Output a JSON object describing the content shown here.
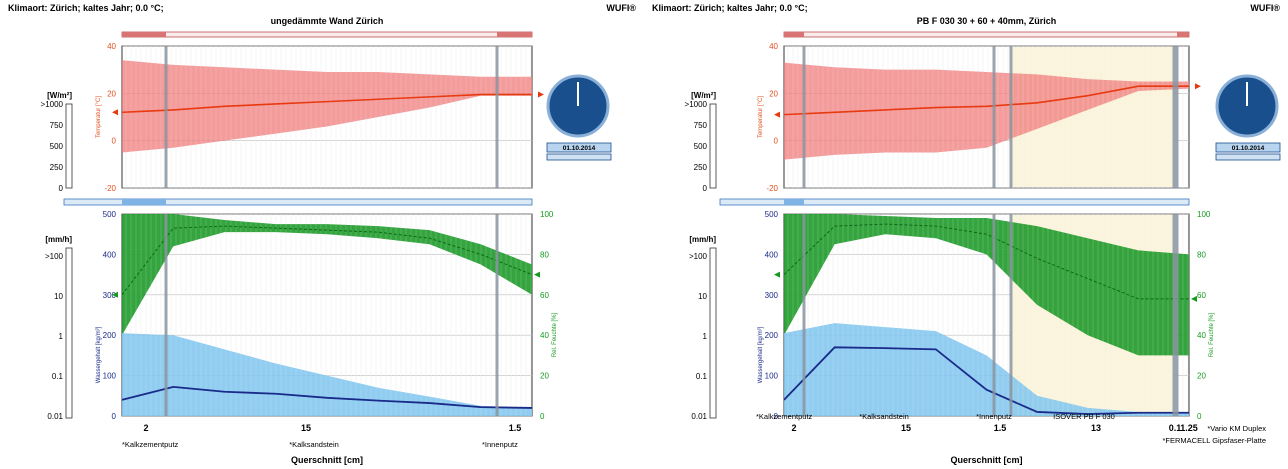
{
  "chart_data": [
    {
      "type": "area",
      "header_left": "Klimaort: Zürich; kaltes Jahr; 0.0 °C;",
      "header_right": "WUFI®",
      "title": "ungedämmte Wand Zürich",
      "xlabel": "Querschnitt [cm]",
      "layers": [
        {
          "name": "*Kalkzementputz",
          "thickness_label": "2",
          "thickness": 2
        },
        {
          "name": "*Kalksandstein",
          "thickness_label": "15",
          "thickness": 15
        },
        {
          "name": "*Innenputz",
          "thickness_label": "1.5",
          "thickness": 1.5
        }
      ],
      "radiation": {
        "label": "[W/m²]",
        "ticks": [
          ">1000",
          "750",
          "500",
          "250",
          "0"
        ]
      },
      "temperature": {
        "ylabel": "Temperatur [°C]",
        "ylim": [
          -20,
          40
        ],
        "ticks": [
          "40",
          "20",
          "0",
          "-20"
        ],
        "band_min": [
          -5,
          -3,
          0,
          3,
          6,
          10,
          14,
          19,
          19
        ],
        "band_max": [
          34,
          32,
          31,
          30,
          29,
          29,
          28,
          27,
          27
        ],
        "line": [
          12,
          13,
          14.5,
          15.5,
          16.5,
          17.5,
          18.5,
          19.5,
          19.5
        ]
      },
      "rain": {
        "label": "[mm/h]",
        "ticks": [
          ">100",
          "10",
          "1",
          "0.1",
          "0.01"
        ]
      },
      "water_content": {
        "ylabel": "Wassergehalt [kg/m³]",
        "ylim": [
          0,
          500
        ],
        "ticks": [
          "500",
          "400",
          "300",
          "200",
          "100",
          "0"
        ],
        "band_max": [
          205,
          200,
          165,
          130,
          100,
          70,
          48,
          25,
          20
        ],
        "line": [
          40,
          72,
          60,
          55,
          45,
          38,
          32,
          22,
          20
        ]
      },
      "rel_humidity": {
        "ylabel": "Rel. Feuchte [%]",
        "ylim": [
          0,
          100
        ],
        "ticks": [
          "100",
          "80",
          "60",
          "40",
          "20",
          "0"
        ],
        "band_min": [
          40,
          84,
          91,
          91,
          90,
          88,
          85,
          75,
          60
        ],
        "band_max": [
          100,
          100,
          97,
          95,
          95,
          94,
          92,
          85,
          75
        ],
        "line": [
          60,
          93,
          94,
          93,
          92,
          91,
          88,
          80,
          70
        ]
      },
      "clock": {
        "date": "01.10.2014"
      }
    },
    {
      "type": "area",
      "header_left": "Klimaort: Zürich; kaltes Jahr; 0.0 °C;",
      "header_right": "WUFI®",
      "title": "PB F 030 30 + 60 + 40mm, Zürich",
      "xlabel": "Querschnitt [cm]",
      "layers": [
        {
          "name": "*Kalkzementputz",
          "thickness_label": "2",
          "thickness": 2
        },
        {
          "name": "*Kalksandstein",
          "thickness_label": "15",
          "thickness": 15
        },
        {
          "name": "*Innenputz",
          "thickness_label": "1.5",
          "thickness": 1.5
        },
        {
          "name": "ISOVER PB F 030",
          "thickness_label": "13",
          "thickness": 13
        },
        {
          "name": "*Vario KM Duplex",
          "thickness_label": "0.1",
          "thickness": 0.1
        },
        {
          "name": "*FERMACELL Gipsfaser-Platte",
          "thickness_label": "1.25",
          "thickness": 1.25
        }
      ],
      "radiation": {
        "label": "[W/m²]",
        "ticks": [
          ">1000",
          "750",
          "500",
          "250",
          "0"
        ]
      },
      "temperature": {
        "ylabel": "Temperatur [°C]",
        "ylim": [
          -20,
          40
        ],
        "ticks": [
          "40",
          "20",
          "0",
          "-20"
        ],
        "band_min": [
          -8,
          -6,
          -5,
          -5,
          -3,
          5,
          13,
          21,
          22
        ],
        "band_max": [
          33,
          31,
          30,
          30,
          29,
          28,
          26,
          25,
          25
        ],
        "line": [
          11,
          12,
          13,
          14,
          14.5,
          16,
          19,
          23,
          23
        ]
      },
      "rain": {
        "label": "[mm/h]",
        "ticks": [
          ">100",
          "10",
          "1",
          "0.1",
          "0.01"
        ]
      },
      "water_content": {
        "ylabel": "Wassergehalt [kg/m³]",
        "ylim": [
          0,
          500
        ],
        "ticks": [
          "500",
          "400",
          "300",
          "200",
          "100",
          "0"
        ],
        "band_max": [
          205,
          230,
          220,
          210,
          150,
          50,
          20,
          10,
          10
        ],
        "line": [
          40,
          170,
          168,
          165,
          65,
          10,
          5,
          8,
          8
        ]
      },
      "rel_humidity": {
        "ylabel": "Rel. Feuchte [%]",
        "ylim": [
          0,
          100
        ],
        "ticks": [
          "100",
          "80",
          "60",
          "40",
          "20",
          "0"
        ],
        "band_min": [
          40,
          85,
          90,
          88,
          80,
          55,
          40,
          30,
          30
        ],
        "band_max": [
          100,
          100,
          99,
          98,
          98,
          94,
          88,
          82,
          80
        ],
        "line": [
          70,
          94,
          95,
          94,
          90,
          78,
          68,
          58,
          58
        ]
      },
      "clock": {
        "date": "01.10.2014"
      }
    }
  ]
}
